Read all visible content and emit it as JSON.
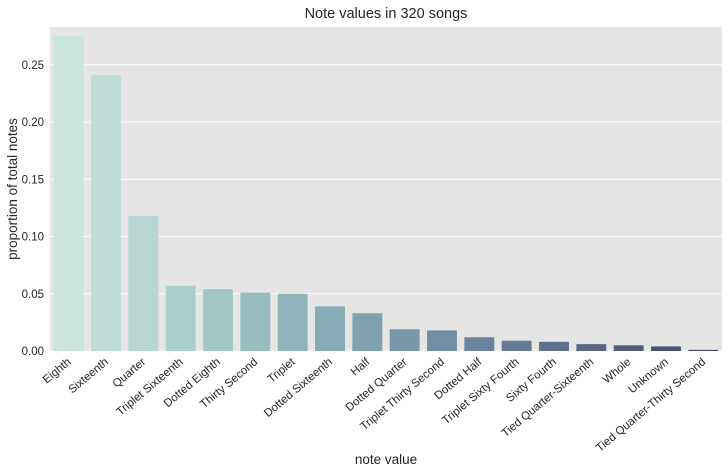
{
  "chart_data": {
    "type": "bar",
    "title": "Note values in 320 songs",
    "xlabel": "note value",
    "ylabel": "proportion of total notes",
    "ylim": [
      0,
      0.283
    ],
    "yticks": [
      0.0,
      0.05,
      0.1,
      0.15,
      0.2,
      0.25
    ],
    "ytick_labels": [
      "0.00",
      "0.05",
      "0.10",
      "0.15",
      "0.20",
      "0.25"
    ],
    "grid": true,
    "background": "#e5e5e5",
    "categories": [
      "Eighth",
      "Sixteenth",
      "Quarter",
      "Triplet Sixteenth",
      "Dotted Eighth",
      "Thirty Second",
      "Triplet",
      "Dotted Sixteenth",
      "Half",
      "Dotted Quarter",
      "Triplet Thirty Second",
      "Dotted Half",
      "Triplet Sixty Fourth",
      "Sixty Fourth",
      "Tied Quarter-Sixteenth",
      "Whole",
      "Unknown",
      "Tied Quarter-Thirty Second"
    ],
    "values": [
      0.275,
      0.241,
      0.118,
      0.057,
      0.054,
      0.051,
      0.05,
      0.039,
      0.033,
      0.019,
      0.018,
      0.012,
      0.009,
      0.008,
      0.006,
      0.005,
      0.004,
      0.001
    ],
    "colors": [
      "#c9e3dd",
      "#bfddd7",
      "#b5d6d1",
      "#abcfca",
      "#a1c6c4",
      "#98bdbf",
      "#8fb4ba",
      "#87abb5",
      "#7fa1b0",
      "#7897ab",
      "#728ea5",
      "#6b849e",
      "#657a96",
      "#5f708e",
      "#596686",
      "#525c7d",
      "#4c5274",
      "#45486a"
    ]
  }
}
